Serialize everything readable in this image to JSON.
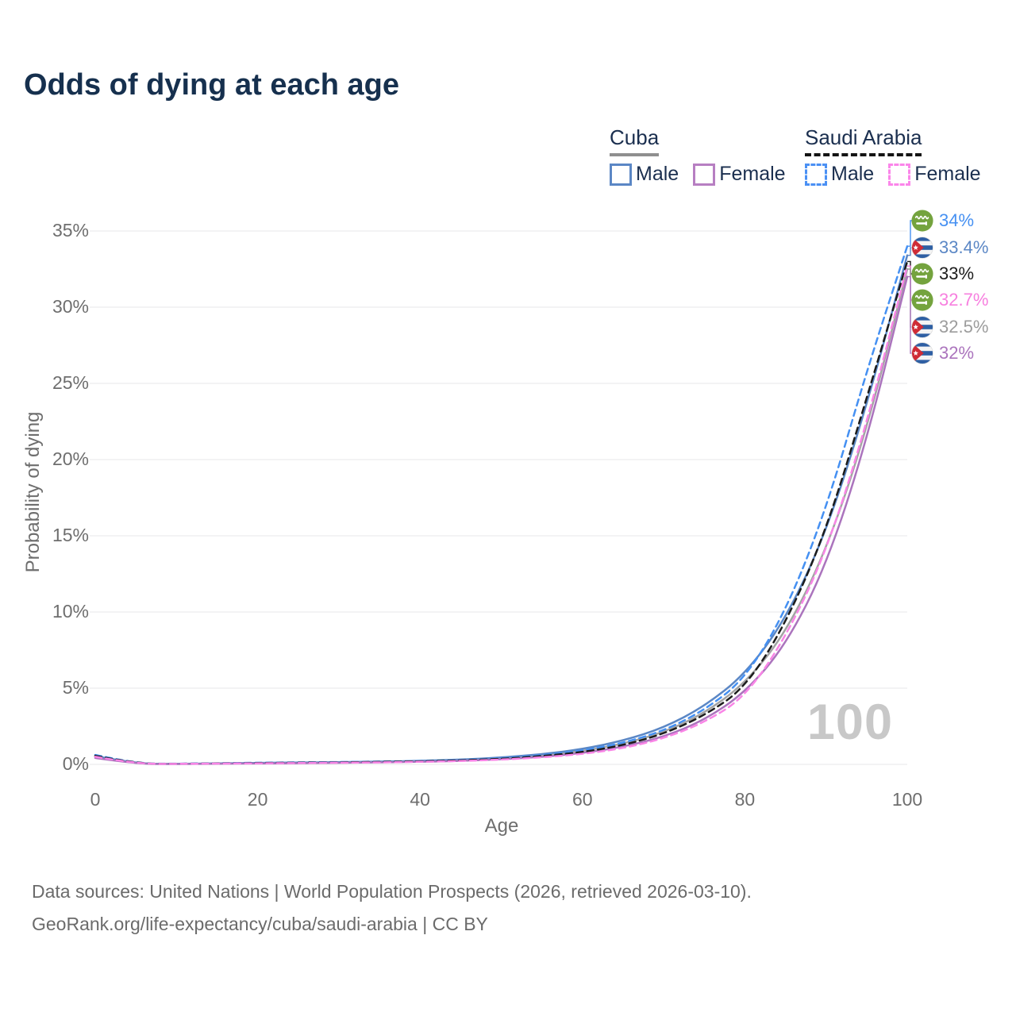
{
  "title": "Odds of dying at each age",
  "legend": {
    "groups": [
      {
        "name": "Cuba",
        "style": "solid",
        "items": [
          {
            "label": "Male",
            "color": "#5b87c5"
          },
          {
            "label": "Female",
            "color": "#b77fc2"
          }
        ]
      },
      {
        "name": "Saudi Arabia",
        "style": "dashed",
        "items": [
          {
            "label": "Male",
            "color": "#4a90f4"
          },
          {
            "label": "Female",
            "color": "#fb86ea"
          }
        ]
      }
    ]
  },
  "watermark": "100",
  "footer": {
    "line1": "Data sources: United Nations | World Population Prospects (2026, retrieved 2026-03-10).",
    "line2": "GeoRank.org/life-expectancy/cuba/saudi-arabia | CC BY"
  },
  "chart_data": {
    "type": "line",
    "title": "Odds of dying at each age",
    "xlabel": "Age",
    "ylabel": "Probability of dying",
    "xlim": [
      0,
      100
    ],
    "ylim": [
      0,
      35
    ],
    "x_ticks": [
      0,
      20,
      40,
      60,
      80,
      100
    ],
    "y_ticks": [
      "0%",
      "5%",
      "10%",
      "15%",
      "20%",
      "25%",
      "30%",
      "35%"
    ],
    "y_tick_values": [
      0,
      5,
      10,
      15,
      20,
      25,
      30,
      35
    ],
    "grid": "horizontal-only",
    "legend_position": "top-right",
    "ages": [
      0,
      5,
      10,
      15,
      20,
      25,
      30,
      35,
      40,
      45,
      50,
      55,
      60,
      65,
      70,
      75,
      80,
      85,
      90,
      95,
      100
    ],
    "series": [
      {
        "id": "cuba_both",
        "name": "Cuba — Both sexes",
        "country": "Cuba",
        "color": "#a3a3a3",
        "dash": "solid",
        "values": [
          0.48,
          0.035,
          0.025,
          0.05,
          0.08,
          0.1,
          0.12,
          0.15,
          0.2,
          0.27,
          0.39,
          0.57,
          0.87,
          1.35,
          2.1,
          3.35,
          5.3,
          8.6,
          14.0,
          21.9,
          32.5
        ]
      },
      {
        "id": "cuba_male",
        "name": "Cuba — Male",
        "country": "Cuba",
        "color": "#5b87c5",
        "dash": "solid",
        "values": [
          0.55,
          0.04,
          0.03,
          0.06,
          0.1,
          0.12,
          0.14,
          0.18,
          0.23,
          0.31,
          0.45,
          0.66,
          1.0,
          1.55,
          2.4,
          3.8,
          5.9,
          9.5,
          15.2,
          23.5,
          33.4
        ]
      },
      {
        "id": "cuba_female",
        "name": "Cuba — Female",
        "country": "Cuba",
        "color": "#ab74bd",
        "dash": "solid",
        "values": [
          0.42,
          0.03,
          0.02,
          0.04,
          0.06,
          0.08,
          0.1,
          0.13,
          0.17,
          0.23,
          0.33,
          0.49,
          0.74,
          1.15,
          1.8,
          2.9,
          4.7,
          7.8,
          13.0,
          21.2,
          32.0
        ]
      },
      {
        "id": "saudi_male",
        "name": "Saudi Arabia — Male",
        "country": "Saudi Arabia",
        "color": "#4590f2",
        "dash": "dashed",
        "values": [
          0.62,
          0.05,
          0.04,
          0.07,
          0.11,
          0.13,
          0.15,
          0.18,
          0.22,
          0.28,
          0.4,
          0.6,
          0.9,
          1.4,
          2.2,
          3.55,
          5.6,
          10.0,
          16.7,
          25.8,
          34.0
        ]
      },
      {
        "id": "saudi_both",
        "name": "Saudi Arabia — Both sexes",
        "country": "Saudi Arabia",
        "color": "#1c1c1c",
        "dash": "dashed",
        "values": [
          0.56,
          0.045,
          0.035,
          0.06,
          0.09,
          0.11,
          0.13,
          0.16,
          0.2,
          0.26,
          0.36,
          0.54,
          0.8,
          1.25,
          2.0,
          3.2,
          5.0,
          9.2,
          15.3,
          24.0,
          33.0
        ]
      },
      {
        "id": "saudi_female",
        "name": "Saudi Arabia — Female",
        "country": "Saudi Arabia",
        "color": "#f985e6",
        "dash": "dashed",
        "values": [
          0.5,
          0.04,
          0.03,
          0.05,
          0.07,
          0.09,
          0.11,
          0.13,
          0.17,
          0.22,
          0.31,
          0.46,
          0.68,
          1.05,
          1.7,
          2.75,
          4.4,
          8.3,
          13.9,
          22.3,
          32.7
        ]
      }
    ],
    "end_labels": [
      {
        "text": "34%",
        "value": 34.0,
        "flag": "saudi",
        "series": "saudi_male",
        "color": "#4590f2"
      },
      {
        "text": "33.4%",
        "value": 33.4,
        "flag": "cuba",
        "series": "cuba_male",
        "color": "#5b87c5"
      },
      {
        "text": "33%",
        "value": 33.0,
        "flag": "saudi",
        "series": "saudi_both",
        "color": "#1c1c1c"
      },
      {
        "text": "32.7%",
        "value": 32.7,
        "flag": "saudi",
        "series": "saudi_female",
        "color": "#f77fdf"
      },
      {
        "text": "32.5%",
        "value": 32.5,
        "flag": "cuba",
        "series": "cuba_both",
        "color": "#9c9c9c"
      },
      {
        "text": "32%",
        "value": 32.0,
        "flag": "cuba",
        "series": "cuba_female",
        "color": "#ab74bd"
      }
    ]
  }
}
